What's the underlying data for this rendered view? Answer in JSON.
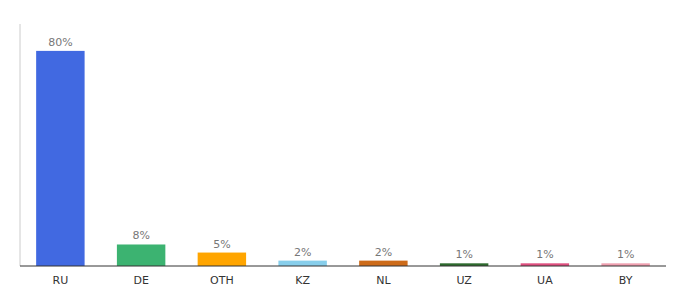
{
  "chart_data": {
    "type": "bar",
    "categories": [
      "RU",
      "DE",
      "OTH",
      "KZ",
      "NL",
      "UZ",
      "UA",
      "BY"
    ],
    "values": [
      80,
      8,
      5,
      2,
      2,
      1,
      1,
      1
    ],
    "value_labels": [
      "80%",
      "8%",
      "5%",
      "2%",
      "2%",
      "1%",
      "1%",
      "1%"
    ],
    "colors": [
      "#4169E1",
      "#3CB371",
      "#FFA500",
      "#87CEEB",
      "#CD6B1A",
      "#2E6B2E",
      "#E05080",
      "#F0A0B0"
    ],
    "ylim": [
      0,
      90
    ],
    "data_labels": true,
    "tick_labels": "x"
  }
}
